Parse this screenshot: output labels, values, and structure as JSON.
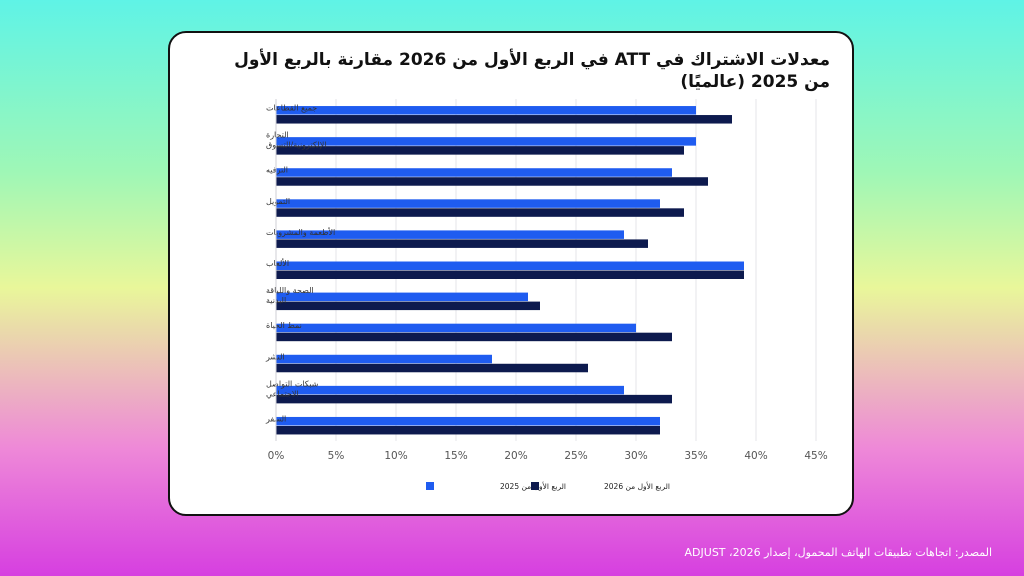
{
  "source_note": "المصدر: اتجاهات تطبيقات الهاتف المحمول، إصدار 2026، ADJUST",
  "chart_data": {
    "type": "bar",
    "orientation": "horizontal",
    "title": "معدلات الاشتراك في ATT في الربع الأول من 2026 مقارنة بالربع الأول من 2025 (عالميًا)",
    "categories": [
      "جميع القطاعات",
      "التجارة الإلكترونية/التسوق",
      "الترفيه",
      "التمويل",
      "الأطعمة والمشروبات",
      "الألعاب",
      "الصحة واللياقة البدنية",
      "نمط الحياة",
      "النشر",
      "شبكات التواصل الاجتماعي",
      "السفر"
    ],
    "series": [
      {
        "name": "الربع الأول من 2025",
        "color": "#1f5cf0",
        "values": [
          35,
          35,
          33,
          32,
          29,
          39,
          21,
          30,
          18,
          29,
          32
        ]
      },
      {
        "name": "الربع الأول من 2026",
        "color": "#0d1a4e",
        "values": [
          38,
          34,
          36,
          34,
          31,
          39,
          22,
          33,
          26,
          33,
          32
        ]
      }
    ],
    "x_ticks": [
      "0%",
      "5%",
      "10%",
      "15%",
      "20%",
      "25%",
      "30%",
      "35%",
      "40%",
      "45%"
    ],
    "xlim": [
      0,
      45
    ],
    "grid": true,
    "legend": "bottom"
  }
}
